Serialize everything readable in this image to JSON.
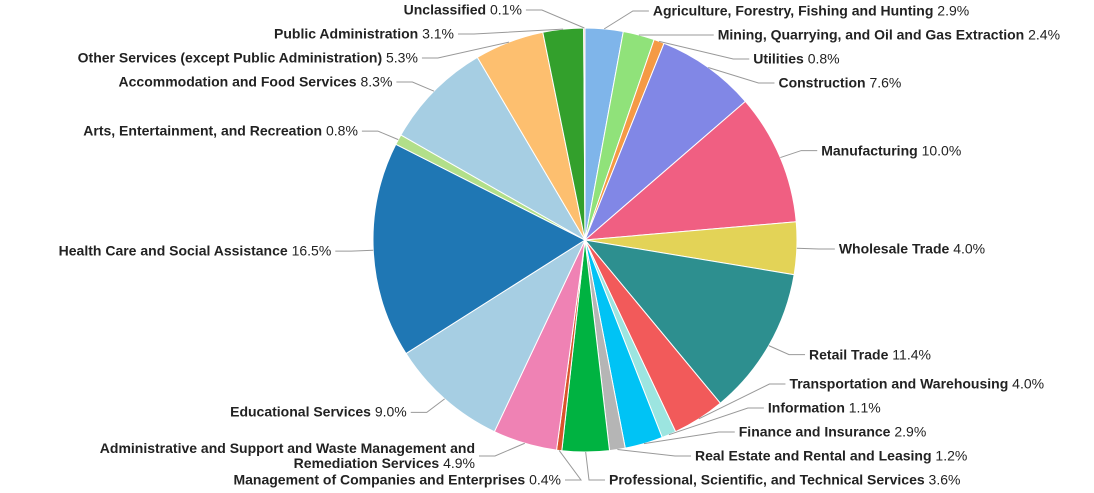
{
  "chart_data": {
    "type": "pie",
    "categories": [
      "Agriculture, Forestry, Fishing and Hunting",
      "Mining, Quarrying, and Oil and Gas Extraction",
      "Utilities",
      "Construction",
      "Manufacturing",
      "Wholesale Trade",
      "Retail Trade",
      "Transportation and Warehousing",
      "Information",
      "Finance and Insurance",
      "Real Estate and Rental and Leasing",
      "Professional, Scientific, and Technical Services",
      "Management of Companies and Enterprises",
      "Administrative and Support and Waste Management and Remediation Services",
      "Educational Services",
      "Health Care and Social Assistance",
      "Arts, Entertainment, and Recreation",
      "Accommodation and Food Services",
      "Other Services (except Public Administration)",
      "Public Administration",
      "Unclassified"
    ],
    "values": [
      2.9,
      2.4,
      0.8,
      7.6,
      10.0,
      4.0,
      11.4,
      4.0,
      1.1,
      2.9,
      1.2,
      3.6,
      0.4,
      4.9,
      9.0,
      16.5,
      0.8,
      8.3,
      5.3,
      3.1,
      0.1
    ],
    "value_labels": [
      "2.9%",
      "2.4%",
      "0.8%",
      "7.6%",
      "10.0%",
      "4.0%",
      "11.4%",
      "4.0%",
      "1.1%",
      "2.9%",
      "1.2%",
      "3.6%",
      "0.4%",
      "4.9%",
      "9.0%",
      "16.5%",
      "0.8%",
      "8.3%",
      "5.3%",
      "3.1%",
      "0.1%"
    ],
    "colors": [
      "#7fb5ea",
      "#90e27a",
      "#f59a45",
      "#8187e6",
      "#f05f82",
      "#e3d357",
      "#2d8f8f",
      "#f25a5a",
      "#9ce5e0",
      "#00c3f5",
      "#b5b5b5",
      "#00b341",
      "#d9542b",
      "#ef82b4",
      "#a6cee3",
      "#1f77b4",
      "#b2df8a",
      "#a6cee3",
      "#fdbf6f",
      "#33a02c",
      "#fb9a99"
    ]
  }
}
